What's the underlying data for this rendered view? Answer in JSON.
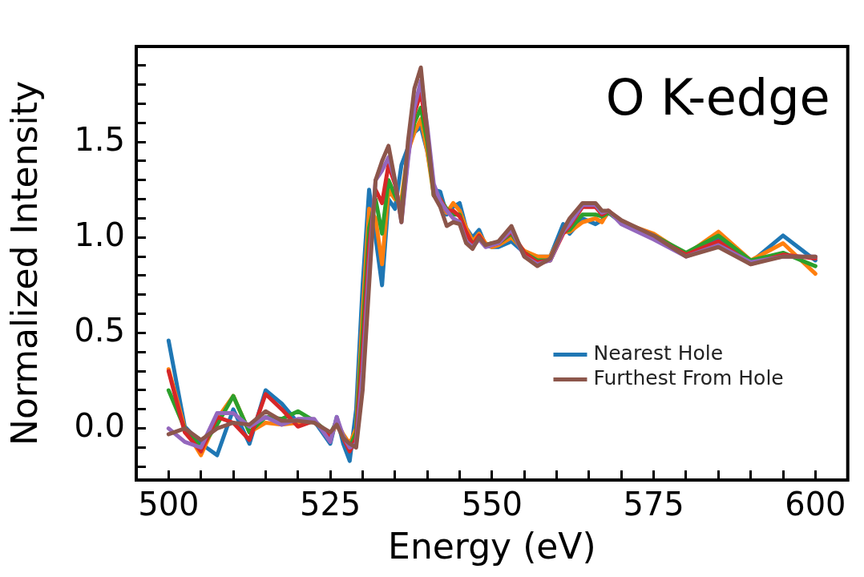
{
  "chart_data": {
    "type": "line",
    "title": "O K-edge",
    "xlabel": "Energy (eV)",
    "ylabel": "Normalized Intensity",
    "x": [
      500,
      502.5,
      505,
      507.5,
      510,
      512.5,
      515,
      517.5,
      520,
      522.5,
      525,
      526,
      527,
      528,
      529,
      530,
      531,
      532,
      533,
      534,
      535,
      536,
      537,
      538,
      539,
      540,
      541,
      542,
      543,
      544,
      545,
      546,
      547,
      548,
      549,
      550,
      551,
      553,
      555,
      557,
      559,
      561,
      562,
      564,
      566,
      567,
      568,
      570,
      575,
      580,
      585,
      590,
      595,
      600
    ],
    "series": [
      {
        "name": "Nearest Hole",
        "color": "#1f77b4",
        "values": [
          0.46,
          0.01,
          -0.08,
          -0.14,
          0.1,
          -0.08,
          0.2,
          0.13,
          0.03,
          0.04,
          -0.08,
          0.06,
          -0.08,
          -0.17,
          0.1,
          0.75,
          1.25,
          1.0,
          0.75,
          1.2,
          1.15,
          1.38,
          1.47,
          1.55,
          1.58,
          1.45,
          1.25,
          1.24,
          1.12,
          1.16,
          1.18,
          1.05,
          1.0,
          1.04,
          0.96,
          0.95,
          0.95,
          0.98,
          0.92,
          0.9,
          0.9,
          1.07,
          1.02,
          1.1,
          1.07,
          1.09,
          1.13,
          1.08,
          1.01,
          0.91,
          1.0,
          0.87,
          1.01,
          0.88
        ]
      },
      {
        "color": "#ff7f0e",
        "values": [
          0.31,
          0.0,
          -0.14,
          0.05,
          0.17,
          -0.02,
          0.03,
          0.02,
          0.03,
          0.04,
          -0.05,
          0.03,
          -0.03,
          -0.08,
          0.0,
          0.6,
          1.15,
          1.1,
          0.86,
          1.25,
          1.2,
          1.2,
          1.45,
          1.55,
          1.62,
          1.45,
          1.22,
          1.2,
          1.13,
          1.18,
          1.14,
          1.05,
          0.98,
          1.02,
          0.97,
          0.95,
          0.96,
          1.0,
          0.93,
          0.9,
          0.9,
          1.03,
          1.03,
          1.08,
          1.1,
          1.08,
          1.14,
          1.08,
          1.02,
          0.91,
          1.03,
          0.88,
          0.97,
          0.81
        ]
      },
      {
        "color": "#2ca02c",
        "values": [
          0.2,
          0.0,
          -0.1,
          0.02,
          0.17,
          -0.02,
          0.06,
          0.05,
          0.09,
          0.04,
          -0.03,
          0.04,
          -0.04,
          -0.1,
          -0.02,
          0.5,
          1.05,
          1.2,
          1.02,
          1.3,
          1.22,
          1.15,
          1.45,
          1.6,
          1.68,
          1.5,
          1.22,
          1.2,
          1.15,
          1.12,
          1.12,
          1.02,
          0.97,
          0.99,
          0.96,
          0.97,
          0.97,
          1.02,
          0.92,
          0.88,
          0.88,
          1.03,
          1.04,
          1.12,
          1.12,
          1.11,
          1.13,
          1.08,
          1.01,
          0.92,
          1.01,
          0.88,
          0.92,
          0.85
        ]
      },
      {
        "color": "#d62728",
        "values": [
          0.3,
          -0.02,
          -0.12,
          0.06,
          0.03,
          -0.06,
          0.18,
          0.1,
          0.01,
          0.04,
          -0.04,
          0.04,
          -0.05,
          -0.12,
          -0.05,
          0.4,
          0.95,
          1.25,
          1.18,
          1.38,
          1.28,
          1.1,
          1.42,
          1.65,
          1.76,
          1.55,
          1.24,
          1.2,
          1.14,
          1.14,
          1.11,
          1.03,
          0.96,
          1.01,
          0.96,
          0.96,
          0.97,
          1.03,
          0.92,
          0.87,
          0.88,
          1.02,
          1.06,
          1.16,
          1.16,
          1.12,
          1.14,
          1.08,
          1.0,
          0.91,
          0.98,
          0.86,
          0.91,
          0.89
        ]
      },
      {
        "color": "#9467bd",
        "values": [
          0.0,
          -0.07,
          -0.1,
          0.08,
          0.08,
          0.01,
          0.06,
          0.02,
          0.05,
          0.05,
          -0.07,
          0.06,
          -0.04,
          -0.1,
          -0.08,
          0.3,
          0.85,
          1.3,
          1.35,
          1.42,
          1.3,
          1.08,
          1.4,
          1.68,
          1.82,
          1.58,
          1.28,
          1.19,
          1.14,
          1.1,
          1.08,
          0.98,
          0.95,
          0.99,
          0.95,
          0.96,
          0.97,
          1.04,
          0.9,
          0.86,
          0.88,
          1.03,
          1.07,
          1.17,
          1.17,
          1.13,
          1.14,
          1.07,
          0.99,
          0.9,
          0.96,
          0.87,
          0.9,
          0.9
        ]
      },
      {
        "name": "Furthest From Hole",
        "color": "#8c564b",
        "values": [
          -0.03,
          0.0,
          -0.06,
          0.0,
          0.03,
          0.02,
          0.09,
          0.04,
          0.04,
          0.03,
          -0.02,
          0.02,
          -0.05,
          -0.08,
          -0.1,
          0.2,
          0.75,
          1.3,
          1.4,
          1.48,
          1.3,
          1.08,
          1.5,
          1.78,
          1.89,
          1.55,
          1.22,
          1.16,
          1.06,
          1.08,
          1.07,
          0.97,
          0.94,
          1.0,
          0.96,
          0.97,
          0.98,
          1.06,
          0.9,
          0.85,
          0.89,
          1.04,
          1.1,
          1.18,
          1.18,
          1.14,
          1.14,
          1.09,
          1.01,
          0.9,
          0.95,
          0.86,
          0.9,
          0.9
        ]
      }
    ],
    "xlim": [
      495,
      605
    ],
    "xticks": [
      500,
      {
        "value": 505,
        "label": null
      },
      {
        "value": 510,
        "label": null
      },
      {
        "value": 515,
        "label": null
      },
      {
        "value": 520,
        "label": null
      },
      525,
      {
        "value": 530,
        "label": null
      },
      {
        "value": 535,
        "label": null
      },
      {
        "value": 540,
        "label": null
      },
      {
        "value": 545,
        "label": null
      },
      550,
      {
        "value": 555,
        "label": null
      },
      {
        "value": 560,
        "label": null
      },
      {
        "value": 565,
        "label": null
      },
      {
        "value": 570,
        "label": null
      },
      575,
      {
        "value": 580,
        "label": null
      },
      {
        "value": 585,
        "label": null
      },
      {
        "value": 590,
        "label": null
      },
      {
        "value": 595,
        "label": null
      },
      600
    ],
    "ylim": [
      -0.27,
      2.0
    ],
    "yticks": [
      {
        "value": -0.2,
        "label": null
      },
      {
        "value": -0.1,
        "label": null
      },
      {
        "value": 0,
        "label": "0.0"
      },
      {
        "value": 0.1,
        "label": null
      },
      {
        "value": 0.2,
        "label": null
      },
      {
        "value": 0.3,
        "label": null
      },
      {
        "value": 0.4,
        "label": null
      },
      0.5,
      {
        "value": 0.6,
        "label": null
      },
      {
        "value": 0.7,
        "label": null
      },
      {
        "value": 0.8,
        "label": null
      },
      {
        "value": 0.9,
        "label": null
      },
      {
        "value": 1,
        "label": "1.0"
      },
      {
        "value": 1.1,
        "label": null
      },
      {
        "value": 1.2,
        "label": null
      },
      {
        "value": 1.3,
        "label": null
      },
      {
        "value": 1.4,
        "label": null
      },
      1.5,
      {
        "value": 1.6,
        "label": null
      },
      {
        "value": 1.7,
        "label": null
      },
      {
        "value": 1.8,
        "label": null
      },
      {
        "value": 1.9,
        "label": null
      }
    ],
    "grid": false,
    "legend": "bottom right",
    "marker": "none",
    "line_style": "solid"
  }
}
